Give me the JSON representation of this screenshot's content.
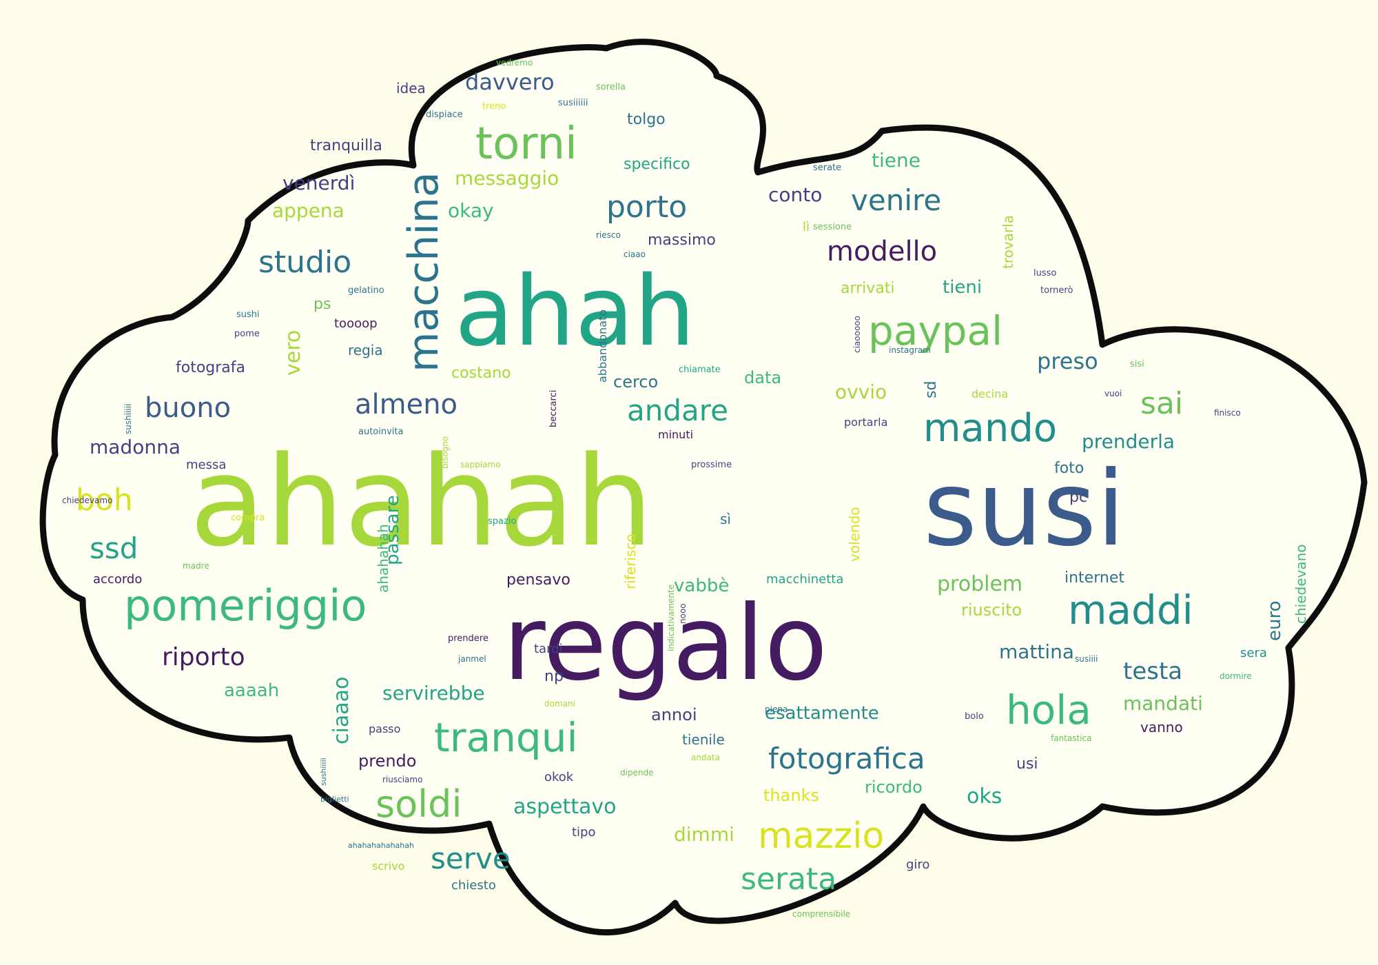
{
  "colors": {
    "background": "#fdfde9",
    "cloud_fill": "#fffff3",
    "cloud_outline": "#0d0d0d",
    "c_yellow": "#d9e21f",
    "c_lime": "#a6d83c",
    "c_green": "#6cc25a",
    "c_mint": "#3db97e",
    "c_teal": "#22a586",
    "c_cyan": "#218e8c",
    "c_steel": "#2c738d",
    "c_blue": "#3b5b8b",
    "c_indigo": "#453f84",
    "c_purple": "#451b62"
  },
  "words": [
    {
      "text": "ahahah",
      "color": "c_lime",
      "size": 165
    },
    {
      "text": "susi",
      "color": "c_blue",
      "size": 135
    },
    {
      "text": "regalo",
      "color": "c_purple",
      "size": 135
    },
    {
      "text": "ahah",
      "color": "c_teal",
      "size": 130
    },
    {
      "text": "macchina",
      "color": "c_steel",
      "size": 56
    },
    {
      "text": "torni",
      "color": "c_green",
      "size": 62
    },
    {
      "text": "pomeriggio",
      "color": "c_mint",
      "size": 58
    },
    {
      "text": "paypal",
      "color": "c_green",
      "size": 54
    },
    {
      "text": "maddi",
      "color": "c_cyan",
      "size": 54
    },
    {
      "text": "mando",
      "color": "c_cyan",
      "size": 52
    },
    {
      "text": "tranqui",
      "color": "c_mint",
      "size": 54
    },
    {
      "text": "hola",
      "color": "c_mint",
      "size": 54
    },
    {
      "text": "mazzio",
      "color": "c_yellow",
      "size": 48
    },
    {
      "text": "soldi",
      "color": "c_green",
      "size": 50
    },
    {
      "text": "fotografica",
      "color": "c_steel",
      "size": 40
    },
    {
      "text": "studio",
      "color": "c_steel",
      "size": 42
    },
    {
      "text": "porto",
      "color": "c_steel",
      "size": 42
    },
    {
      "text": "venire",
      "color": "c_steel",
      "size": 40
    },
    {
      "text": "modello",
      "color": "c_purple",
      "size": 38
    },
    {
      "text": "andare",
      "color": "c_teal",
      "size": 40
    },
    {
      "text": "almeno",
      "color": "c_blue",
      "size": 38
    },
    {
      "text": "buono",
      "color": "c_blue",
      "size": 38
    },
    {
      "text": "sai",
      "color": "c_green",
      "size": 42
    },
    {
      "text": "serata",
      "color": "c_mint",
      "size": 42
    },
    {
      "text": "serve",
      "color": "c_cyan",
      "size": 40
    },
    {
      "text": "riporto",
      "color": "c_purple",
      "size": 34
    },
    {
      "text": "ssd",
      "color": "c_teal",
      "size": 40
    },
    {
      "text": "boh",
      "color": "c_yellow",
      "size": 42
    },
    {
      "text": "preso",
      "color": "c_steel",
      "size": 30
    },
    {
      "text": "testa",
      "color": "c_steel",
      "size": 32
    },
    {
      "text": "vero",
      "color": "c_lime",
      "size": 28
    },
    {
      "text": "problem",
      "color": "c_green",
      "size": 28
    },
    {
      "text": "davvero",
      "color": "c_blue",
      "size": 30
    },
    {
      "text": "aspettavo",
      "color": "c_teal",
      "size": 28
    },
    {
      "text": "messaggio",
      "color": "c_lime",
      "size": 26
    },
    {
      "text": "venerdì",
      "color": "c_indigo",
      "size": 26
    },
    {
      "text": "appena",
      "color": "c_lime",
      "size": 26
    },
    {
      "text": "okay",
      "color": "c_mint",
      "size": 26
    },
    {
      "text": "conto",
      "color": "c_indigo",
      "size": 26
    },
    {
      "text": "tiene",
      "color": "c_mint",
      "size": 26
    },
    {
      "text": "tieni",
      "color": "c_teal",
      "size": 24
    },
    {
      "text": "ovvio",
      "color": "c_lime",
      "size": 26
    },
    {
      "text": "prenderla",
      "color": "c_cyan",
      "size": 26
    },
    {
      "text": "passare",
      "color": "c_teal",
      "size": 24
    },
    {
      "text": "ciaaao",
      "color": "c_teal",
      "size": 28
    },
    {
      "text": "madonna",
      "color": "c_indigo",
      "size": 26
    },
    {
      "text": "euro",
      "color": "c_steel",
      "size": 24
    },
    {
      "text": "mattina",
      "color": "c_steel",
      "size": 26
    },
    {
      "text": "mandati",
      "color": "c_green",
      "size": 26
    },
    {
      "text": "servirebbe",
      "color": "c_teal",
      "size": 26
    },
    {
      "text": "esattamente",
      "color": "c_cyan",
      "size": 24
    },
    {
      "text": "oks",
      "color": "c_teal",
      "size": 28
    },
    {
      "text": "dimmi",
      "color": "c_lime",
      "size": 26
    },
    {
      "text": "vabbè",
      "color": "c_mint",
      "size": 24
    },
    {
      "text": "aaaah",
      "color": "c_mint",
      "size": 24
    },
    {
      "text": "riuscito",
      "color": "c_lime",
      "size": 22
    },
    {
      "text": "specifico",
      "color": "c_teal",
      "size": 20
    },
    {
      "text": "tranquilla",
      "color": "c_indigo",
      "size": 20
    },
    {
      "text": "tolgo",
      "color": "c_steel",
      "size": 20
    },
    {
      "text": "massimo",
      "color": "c_indigo",
      "size": 20
    },
    {
      "text": "costano",
      "color": "c_lime",
      "size": 20
    },
    {
      "text": "regia",
      "color": "c_steel",
      "size": 18
    },
    {
      "text": "fotografa",
      "color": "c_indigo",
      "size": 20
    },
    {
      "text": "cerco",
      "color": "c_steel",
      "size": 22
    },
    {
      "text": "data",
      "color": "c_mint",
      "size": 22
    },
    {
      "text": "arrivati",
      "color": "c_lime",
      "size": 20
    },
    {
      "text": "pensavo",
      "color": "c_purple",
      "size": 20
    },
    {
      "text": "annoi",
      "color": "c_indigo",
      "size": 22
    },
    {
      "text": "prendo",
      "color": "c_purple",
      "size": 22
    },
    {
      "text": "ricordo",
      "color": "c_mint",
      "size": 22
    },
    {
      "text": "internet",
      "color": "c_steel",
      "size": 20
    },
    {
      "text": "thanks",
      "color": "c_yellow",
      "size": 22
    },
    {
      "text": "accordo",
      "color": "c_purple",
      "size": 16
    },
    {
      "text": "macchinetta",
      "color": "c_teal",
      "size": 16
    },
    {
      "text": "tienile",
      "color": "c_steel",
      "size": 18
    },
    {
      "text": "chiedevano",
      "color": "c_mint",
      "size": 18
    },
    {
      "text": "trovarla",
      "color": "c_lime",
      "size": 18
    },
    {
      "text": "idea",
      "color": "c_indigo",
      "size": 18
    },
    {
      "text": "toooop",
      "color": "c_purple",
      "size": 16
    },
    {
      "text": "ps",
      "color": "c_green",
      "size": 20
    },
    {
      "text": "sd",
      "color": "c_steel",
      "size": 20
    },
    {
      "text": "foto",
      "color": "c_steel",
      "size": 20
    },
    {
      "text": "pc",
      "color": "c_indigo",
      "size": 20
    },
    {
      "text": "np",
      "color": "c_indigo",
      "size": 20
    },
    {
      "text": "usi",
      "color": "c_indigo",
      "size": 20
    },
    {
      "text": "sì",
      "color": "c_steel",
      "size": 18
    },
    {
      "text": "lì",
      "color": "c_lime",
      "size": 16
    },
    {
      "text": "tipo",
      "color": "c_indigo",
      "size": 16
    },
    {
      "text": "okok",
      "color": "c_indigo",
      "size": 16
    },
    {
      "text": "giro",
      "color": "c_indigo",
      "size": 16
    },
    {
      "text": "messa",
      "color": "c_indigo",
      "size": 16
    },
    {
      "text": "sera",
      "color": "c_cyan",
      "size": 16
    },
    {
      "text": "vanno",
      "color": "c_purple",
      "size": 18
    },
    {
      "text": "tardi",
      "color": "c_indigo",
      "size": 16
    },
    {
      "text": "chiesto",
      "color": "c_steel",
      "size": 16
    },
    {
      "text": "scrivo",
      "color": "c_lime",
      "size": 14
    },
    {
      "text": "passo",
      "color": "c_indigo",
      "size": 14
    },
    {
      "text": "decina",
      "color": "c_lime",
      "size": 14
    },
    {
      "text": "portarla",
      "color": "c_indigo",
      "size": 14
    },
    {
      "text": "minuti",
      "color": "c_purple",
      "size": 14
    },
    {
      "text": "riferisco",
      "color": "c_yellow",
      "size": 18
    },
    {
      "text": "volendo",
      "color": "c_yellow",
      "size": 18
    },
    {
      "text": "ahahahah",
      "color": "c_mint",
      "size": 18
    },
    {
      "text": "abbandonato",
      "color": "c_steel",
      "size": 14
    },
    {
      "text": "beccarci",
      "color": "c_purple",
      "size": 12
    },
    {
      "text": "bisogno",
      "color": "c_lime",
      "size": 11
    },
    {
      "text": "sappiamo",
      "color": "c_lime",
      "size": 11
    },
    {
      "text": "indicativamente",
      "color": "c_green",
      "size": 11
    },
    {
      "text": "nooo",
      "color": "c_indigo",
      "size": 11
    },
    {
      "text": "ciaooooo",
      "color": "c_indigo",
      "size": 11
    },
    {
      "text": "vedremo",
      "color": "c_green",
      "size": 11
    },
    {
      "text": "sorella",
      "color": "c_green",
      "size": 12
    },
    {
      "text": "dispiace",
      "color": "c_steel",
      "size": 12
    },
    {
      "text": "treno",
      "color": "c_yellow",
      "size": 12
    },
    {
      "text": "susiiiiii",
      "color": "c_steel",
      "size": 12
    },
    {
      "text": "serate",
      "color": "c_steel",
      "size": 12
    },
    {
      "text": "sessione",
      "color": "c_green",
      "size": 12
    },
    {
      "text": "riesco",
      "color": "c_steel",
      "size": 11
    },
    {
      "text": "ciaao",
      "color": "c_steel",
      "size": 11
    },
    {
      "text": "gelatino",
      "color": "c_steel",
      "size": 12
    },
    {
      "text": "tornerò",
      "color": "c_indigo",
      "size": 12
    },
    {
      "text": "lusso",
      "color": "c_indigo",
      "size": 12
    },
    {
      "text": "instagram",
      "color": "c_steel",
      "size": 11
    },
    {
      "text": "sisi",
      "color": "c_green",
      "size": 12
    },
    {
      "text": "chiamate",
      "color": "c_teal",
      "size": 12
    },
    {
      "text": "sushi",
      "color": "c_steel",
      "size": 12
    },
    {
      "text": "pome",
      "color": "c_indigo",
      "size": 12
    },
    {
      "text": "sushiiiii",
      "color": "c_steel",
      "size": 11
    },
    {
      "text": "autoinvita",
      "color": "c_steel",
      "size": 12
    },
    {
      "text": "prossime",
      "color": "c_indigo",
      "size": 12
    },
    {
      "text": "vuoi",
      "color": "c_indigo",
      "size": 11
    },
    {
      "text": "finisco",
      "color": "c_indigo",
      "size": 11
    },
    {
      "text": "chiedevamo",
      "color": "c_indigo",
      "size": 11
    },
    {
      "text": "compra",
      "color": "c_yellow",
      "size": 12
    },
    {
      "text": "spazio",
      "color": "c_teal",
      "size": 12
    },
    {
      "text": "madre",
      "color": "c_green",
      "size": 11
    },
    {
      "text": "prendere",
      "color": "c_purple",
      "size": 12
    },
    {
      "text": "janmel",
      "color": "c_steel",
      "size": 11
    },
    {
      "text": "domani",
      "color": "c_lime",
      "size": 11
    },
    {
      "text": "susiiii",
      "color": "c_steel",
      "size": 11
    },
    {
      "text": "dormire",
      "color": "c_mint",
      "size": 11
    },
    {
      "text": "piena",
      "color": "c_steel",
      "size": 11
    },
    {
      "text": "bolo",
      "color": "c_indigo",
      "size": 12
    },
    {
      "text": "fantastica",
      "color": "c_green",
      "size": 11
    },
    {
      "text": "andata",
      "color": "c_lime",
      "size": 11
    },
    {
      "text": "dipende",
      "color": "c_green",
      "size": 11
    },
    {
      "text": "sushiiiii",
      "color": "c_steel",
      "size": 10
    },
    {
      "text": "biglietti",
      "color": "c_steel",
      "size": 10
    },
    {
      "text": "riusciamo",
      "color": "c_indigo",
      "size": 11
    },
    {
      "text": "ahahahahahahah",
      "color": "c_steel",
      "size": 10
    },
    {
      "text": "comprensibile",
      "color": "c_green",
      "size": 11
    }
  ]
}
